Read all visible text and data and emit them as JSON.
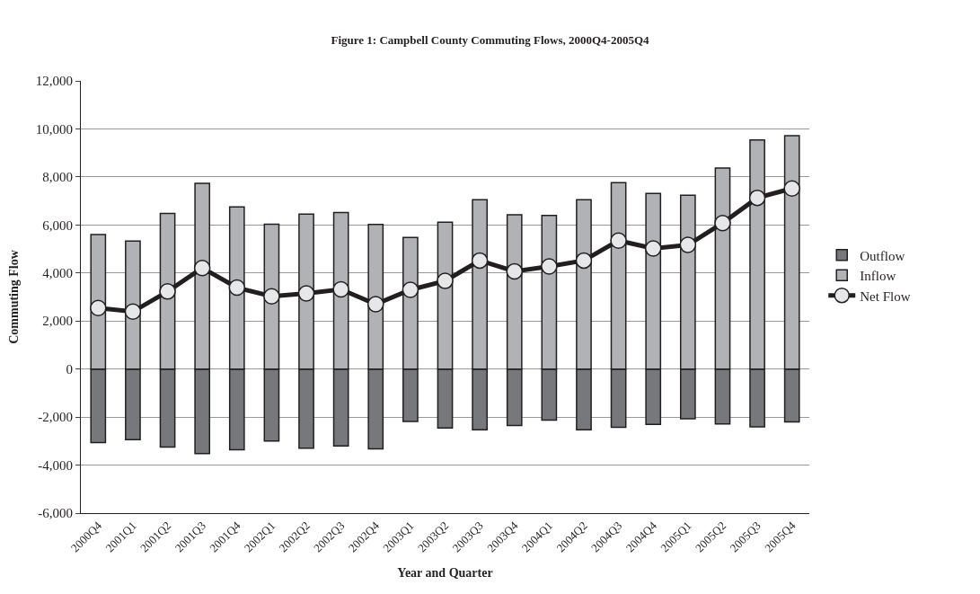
{
  "chart_data": {
    "type": "bar",
    "title": "Figure 1: Campbell County Commuting Flows, 2000Q4-2005Q4",
    "xlabel": "Year and Quarter",
    "ylabel": "Commuting Flow",
    "categories": [
      "2000Q4",
      "2001Q1",
      "2001Q2",
      "2001Q3",
      "2001Q4",
      "2002Q1",
      "2002Q2",
      "2002Q3",
      "2002Q4",
      "2003Q1",
      "2003Q2",
      "2003Q3",
      "2003Q4",
      "2004Q1",
      "2004Q2",
      "2004Q3",
      "2004Q4",
      "2005Q1",
      "2005Q2",
      "2005Q3",
      "2005Q4"
    ],
    "stacked": true,
    "series": [
      {
        "name": "Outflow",
        "color": "#77787b",
        "values": [
          -3060,
          -2940,
          -3250,
          -3520,
          -3360,
          -3000,
          -3300,
          -3200,
          -3320,
          -2180,
          -2450,
          -2530,
          -2350,
          -2130,
          -2530,
          -2430,
          -2300,
          -2070,
          -2290,
          -2410,
          -2200
        ]
      },
      {
        "name": "Inflow",
        "color": "#b1b2b5",
        "values": [
          5600,
          5330,
          6480,
          7730,
          6750,
          6030,
          6450,
          6520,
          6020,
          5480,
          6120,
          7050,
          6420,
          6400,
          7050,
          7760,
          7310,
          7240,
          8370,
          9540,
          9720
        ]
      },
      {
        "name": "Net Flow",
        "type": "line",
        "color": "#231f20",
        "marker": "circle",
        "values": [
          2540,
          2390,
          3230,
          4210,
          3390,
          3030,
          3150,
          3320,
          2700,
          3300,
          3670,
          4520,
          4070,
          4270,
          4520,
          5350,
          5020,
          5170,
          6080,
          7130,
          7520
        ]
      }
    ],
    "ylim": [
      -6000,
      12000
    ],
    "yticks": [
      {
        "value": -6000,
        "label": "-6,000"
      },
      {
        "value": -4000,
        "label": "-4,000"
      },
      {
        "value": -2000,
        "label": "-2,000"
      },
      0,
      {
        "value": 2000,
        "label": "2,000"
      },
      {
        "value": 4000,
        "label": "4,000"
      },
      {
        "value": 6000,
        "label": "6,000"
      },
      {
        "value": 8000,
        "label": "8,000"
      },
      {
        "value": 10000,
        "label": "10,000"
      },
      {
        "value": 12000,
        "label": "12,000"
      }
    ],
    "grid": "y",
    "legend": "right"
  }
}
